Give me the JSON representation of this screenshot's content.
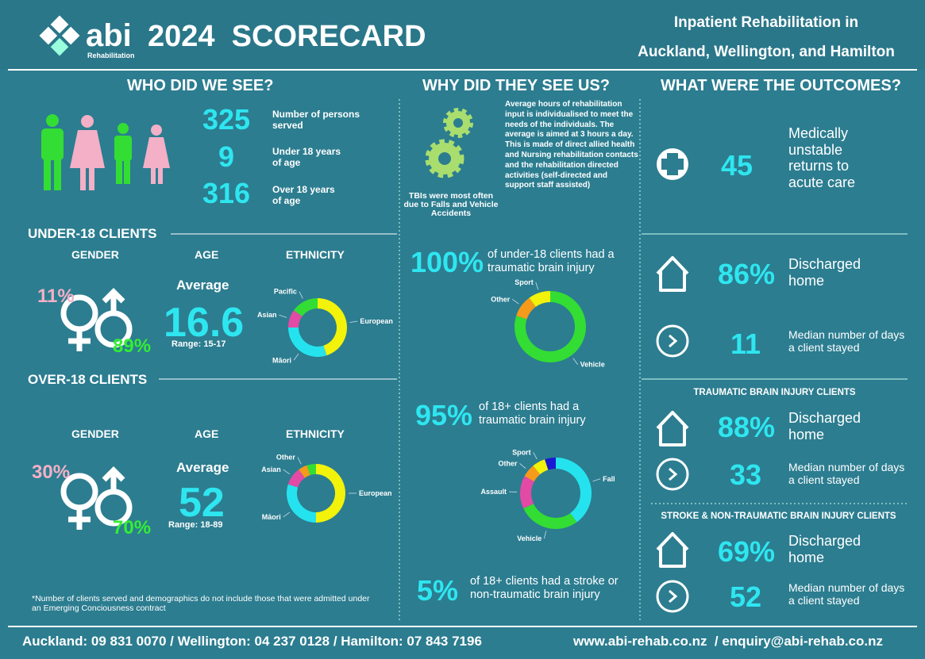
{
  "header": {
    "logo": "abi",
    "logo_sub": "Rehabilitation",
    "title": "2024  SCORECARD",
    "subtitle_lines": [
      "Inpatient Rehabilitation in",
      "Auckland, Wellington, and Hamilton"
    ]
  },
  "sections": [
    "WHO DID WE SEE?",
    "WHY DID THEY SEE US?",
    "WHAT WERE THE OUTCOMES?"
  ],
  "who": {
    "stats": [
      {
        "value": 325,
        "label": "Number of persons served"
      },
      {
        "value": 9,
        "label": "Under 18 years of age"
      },
      {
        "value": 316,
        "label": "Over 18 years of age"
      }
    ]
  },
  "why": {
    "gears_caption": "TBIs were most often due to Falls and Vehicle Accidents",
    "note": "Average hours of rehabilitation input is individualised to meet the needs of the individuals. The average is aimed at 3 hours a day. This is made of direct allied health and Nursing rehabilitation contacts and the rehabilitation directed activities (self-directed and support staff assisted)"
  },
  "under18": {
    "heading": "UNDER-18 CLIENTS",
    "gender_label": "GENDER",
    "age_label": "AGE",
    "ethnicity_label": "ETHNICITY",
    "female": "11%",
    "male": "89%",
    "average_label": "Average",
    "average": 16.6,
    "range": "Range: 15-17",
    "ethnicity": {
      "type": "donut",
      "categories": [
        "European",
        "Māori",
        "Asian",
        "Pacific"
      ],
      "values": [
        45,
        30,
        10,
        15
      ],
      "colors": [
        "#f2f20a",
        "#25e3ee",
        "#e24aa6",
        "#33dd33"
      ]
    },
    "tbi": {
      "value": "100%",
      "text": "of under-18 clients had a traumatic brain injury"
    },
    "tbi_causes": {
      "type": "donut",
      "categories": [
        "Vehicle",
        "Other",
        "Sport"
      ],
      "values": [
        80,
        10,
        10
      ],
      "colors": [
        "#33dd33",
        "#f59a1a",
        "#f2f20a"
      ]
    }
  },
  "over18": {
    "heading": "OVER-18 CLIENTS",
    "gender_label": "GENDER",
    "age_label": "AGE",
    "ethnicity_label": "ETHNICITY",
    "female": "30%",
    "male": "70%",
    "average_label": "Average",
    "average": 52,
    "range": "Range: 18-89",
    "ethnicity": {
      "type": "donut",
      "categories": [
        "European",
        "Māori",
        "Asian",
        "Other",
        null
      ],
      "values": [
        50,
        30,
        10,
        5,
        5
      ],
      "colors": [
        "#f2f20a",
        "#25e3ee",
        "#e24aa6",
        "#f59a1a",
        "#33dd33"
      ]
    },
    "tbi": {
      "value": "95%",
      "text": "of 18+ clients had a traumatic brain injury"
    },
    "tbi_causes": {
      "type": "donut",
      "categories": [
        "Fall",
        "Vehicle",
        "Assault",
        "Other",
        "Sport",
        null
      ],
      "values": [
        40,
        28,
        15,
        6,
        6,
        5
      ],
      "colors": [
        "#25e3ee",
        "#33dd33",
        "#e24aa6",
        "#f59a1a",
        "#f2f20a",
        "#1a1ad0"
      ]
    },
    "stroke": {
      "value": "5%",
      "text": "of 18+ clients had a stroke or non-traumatic brain injury"
    }
  },
  "footnote": "*Number of clients served and demographics do not include those that were admitted under an Emerging Conciousness contract",
  "outcomes": {
    "unstable": {
      "value": 45,
      "text": "Medically unstable returns to acute care"
    },
    "all": {
      "home": "86%",
      "home_text": "Discharged home",
      "days": 11,
      "days_text": "Median number of days a client stayed"
    },
    "tbi": {
      "heading": "TRAUMATIC BRAIN INJURY CLIENTS",
      "home": "88%",
      "home_text": "Discharged home",
      "days": 33,
      "days_text": "Median number of days a client stayed"
    },
    "stroke": {
      "heading": "STROKE & NON-TRAUMATIC BRAIN INJURY CLIENTS",
      "home": "69%",
      "home_text": "Discharged home",
      "days": 52,
      "days_text": "Median number of days a client stayed"
    }
  },
  "footer": {
    "phones": "Auckland: 09 831 0070 / Wellington: 04 237 0128 / Hamilton: 07 843 7196",
    "web": "www.abi-rehab.co.nz  / enquiry@abi-rehab.co.nz"
  }
}
